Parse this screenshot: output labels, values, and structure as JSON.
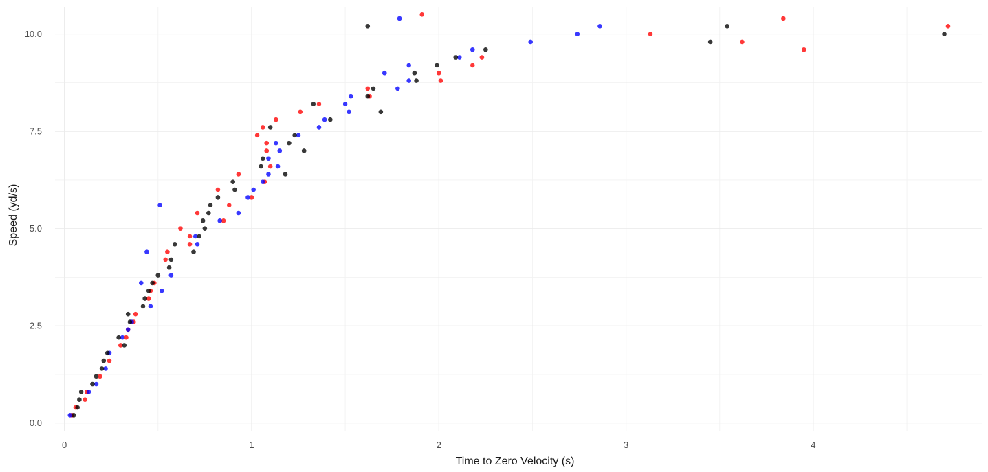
{
  "chart_data": {
    "type": "scatter",
    "title": "",
    "xlabel": "Time to Zero Velocity (s)",
    "ylabel": "Speed (yd/s)",
    "xlim": [
      -0.05,
      4.9
    ],
    "ylim": [
      -0.2,
      10.7
    ],
    "x_ticks": [
      0,
      1,
      2,
      3,
      4
    ],
    "x_tick_labels": [
      "0",
      "1",
      "2",
      "3",
      "4"
    ],
    "y_ticks": [
      0,
      2.5,
      5,
      7.5,
      10
    ],
    "y_tick_labels": [
      "0.0",
      "2.5",
      "5.0",
      "7.5",
      "10.0"
    ],
    "grid": true,
    "legend": "none",
    "series": [
      {
        "color": "#ff0000",
        "points": [
          [
            0.04,
            0.2
          ],
          [
            0.06,
            0.4
          ],
          [
            0.11,
            0.6
          ],
          [
            0.12,
            0.8
          ],
          [
            0.19,
            1.2
          ],
          [
            0.24,
            1.6
          ],
          [
            0.3,
            2.0
          ],
          [
            0.33,
            2.2
          ],
          [
            0.34,
            2.4
          ],
          [
            0.37,
            2.6
          ],
          [
            0.38,
            2.8
          ],
          [
            0.46,
            3.4
          ],
          [
            0.45,
            3.2
          ],
          [
            0.48,
            3.6
          ],
          [
            0.54,
            4.2
          ],
          [
            0.55,
            4.4
          ],
          [
            0.62,
            5.0
          ],
          [
            0.67,
            4.6
          ],
          [
            0.67,
            4.8
          ],
          [
            0.71,
            5.4
          ],
          [
            0.82,
            6.0
          ],
          [
            0.85,
            5.2
          ],
          [
            0.88,
            5.6
          ],
          [
            0.93,
            6.4
          ],
          [
            1.0,
            5.8
          ],
          [
            1.03,
            7.4
          ],
          [
            1.06,
            7.6
          ],
          [
            1.07,
            6.2
          ],
          [
            1.08,
            7.0
          ],
          [
            1.08,
            7.2
          ],
          [
            1.1,
            6.6
          ],
          [
            1.13,
            7.8
          ],
          [
            1.26,
            8.0
          ],
          [
            1.36,
            8.2
          ],
          [
            1.62,
            8.6
          ],
          [
            1.63,
            8.4
          ],
          [
            1.91,
            10.5
          ],
          [
            2.0,
            9.0
          ],
          [
            2.01,
            8.8
          ],
          [
            2.18,
            9.2
          ],
          [
            2.23,
            9.4
          ],
          [
            3.13,
            10.0
          ],
          [
            3.62,
            9.8
          ],
          [
            3.84,
            10.4
          ],
          [
            3.95,
            9.6
          ],
          [
            4.72,
            10.2
          ]
        ]
      },
      {
        "color": "#0000ff",
        "points": [
          [
            0.03,
            0.2
          ],
          [
            0.13,
            0.8
          ],
          [
            0.17,
            1.0
          ],
          [
            0.22,
            1.4
          ],
          [
            0.24,
            1.8
          ],
          [
            0.31,
            2.2
          ],
          [
            0.34,
            2.4
          ],
          [
            0.36,
            2.6
          ],
          [
            0.41,
            3.6
          ],
          [
            0.44,
            4.4
          ],
          [
            0.46,
            3.0
          ],
          [
            0.51,
            5.6
          ],
          [
            0.52,
            3.4
          ],
          [
            0.57,
            3.8
          ],
          [
            0.71,
            4.6
          ],
          [
            0.7,
            4.8
          ],
          [
            0.83,
            5.2
          ],
          [
            0.93,
            5.4
          ],
          [
            0.98,
            5.8
          ],
          [
            1.01,
            6.0
          ],
          [
            1.06,
            6.2
          ],
          [
            1.09,
            6.4
          ],
          [
            1.09,
            6.8
          ],
          [
            1.13,
            7.2
          ],
          [
            1.14,
            6.6
          ],
          [
            1.15,
            7.0
          ],
          [
            1.25,
            7.4
          ],
          [
            1.36,
            7.6
          ],
          [
            1.39,
            7.8
          ],
          [
            1.5,
            8.2
          ],
          [
            1.52,
            8.0
          ],
          [
            1.53,
            8.4
          ],
          [
            1.71,
            9.0
          ],
          [
            1.78,
            8.6
          ],
          [
            1.79,
            10.4
          ],
          [
            1.84,
            9.2
          ],
          [
            1.84,
            8.8
          ],
          [
            2.11,
            9.4
          ],
          [
            2.18,
            9.6
          ],
          [
            2.49,
            9.8
          ],
          [
            2.74,
            10.0
          ],
          [
            2.86,
            10.2
          ]
        ]
      },
      {
        "color": "#000000",
        "points": [
          [
            0.05,
            0.2
          ],
          [
            0.07,
            0.4
          ],
          [
            0.08,
            0.6
          ],
          [
            0.09,
            0.8
          ],
          [
            0.15,
            1.0
          ],
          [
            0.17,
            1.2
          ],
          [
            0.2,
            1.4
          ],
          [
            0.21,
            1.6
          ],
          [
            0.23,
            1.8
          ],
          [
            0.29,
            2.2
          ],
          [
            0.32,
            2.0
          ],
          [
            0.34,
            2.8
          ],
          [
            0.35,
            2.6
          ],
          [
            0.42,
            3.0
          ],
          [
            0.43,
            3.2
          ],
          [
            0.45,
            3.4
          ],
          [
            0.47,
            3.6
          ],
          [
            0.5,
            3.8
          ],
          [
            0.56,
            4.0
          ],
          [
            0.57,
            4.2
          ],
          [
            0.59,
            4.6
          ],
          [
            0.69,
            4.4
          ],
          [
            0.72,
            4.8
          ],
          [
            0.74,
            5.2
          ],
          [
            0.75,
            5.0
          ],
          [
            0.77,
            5.4
          ],
          [
            0.78,
            5.6
          ],
          [
            0.82,
            5.8
          ],
          [
            0.9,
            6.2
          ],
          [
            0.91,
            6.0
          ],
          [
            1.05,
            6.6
          ],
          [
            1.06,
            6.8
          ],
          [
            1.1,
            7.6
          ],
          [
            1.18,
            6.4
          ],
          [
            1.2,
            7.2
          ],
          [
            1.23,
            7.4
          ],
          [
            1.28,
            7.0
          ],
          [
            1.33,
            8.2
          ],
          [
            1.42,
            7.8
          ],
          [
            1.62,
            8.4
          ],
          [
            1.62,
            10.2
          ],
          [
            1.65,
            8.6
          ],
          [
            1.69,
            8.0
          ],
          [
            1.87,
            9.0
          ],
          [
            1.88,
            8.8
          ],
          [
            1.99,
            9.2
          ],
          [
            2.09,
            9.4
          ],
          [
            2.25,
            9.6
          ],
          [
            3.45,
            9.8
          ],
          [
            3.54,
            10.2
          ],
          [
            4.7,
            10.0
          ]
        ]
      }
    ]
  }
}
